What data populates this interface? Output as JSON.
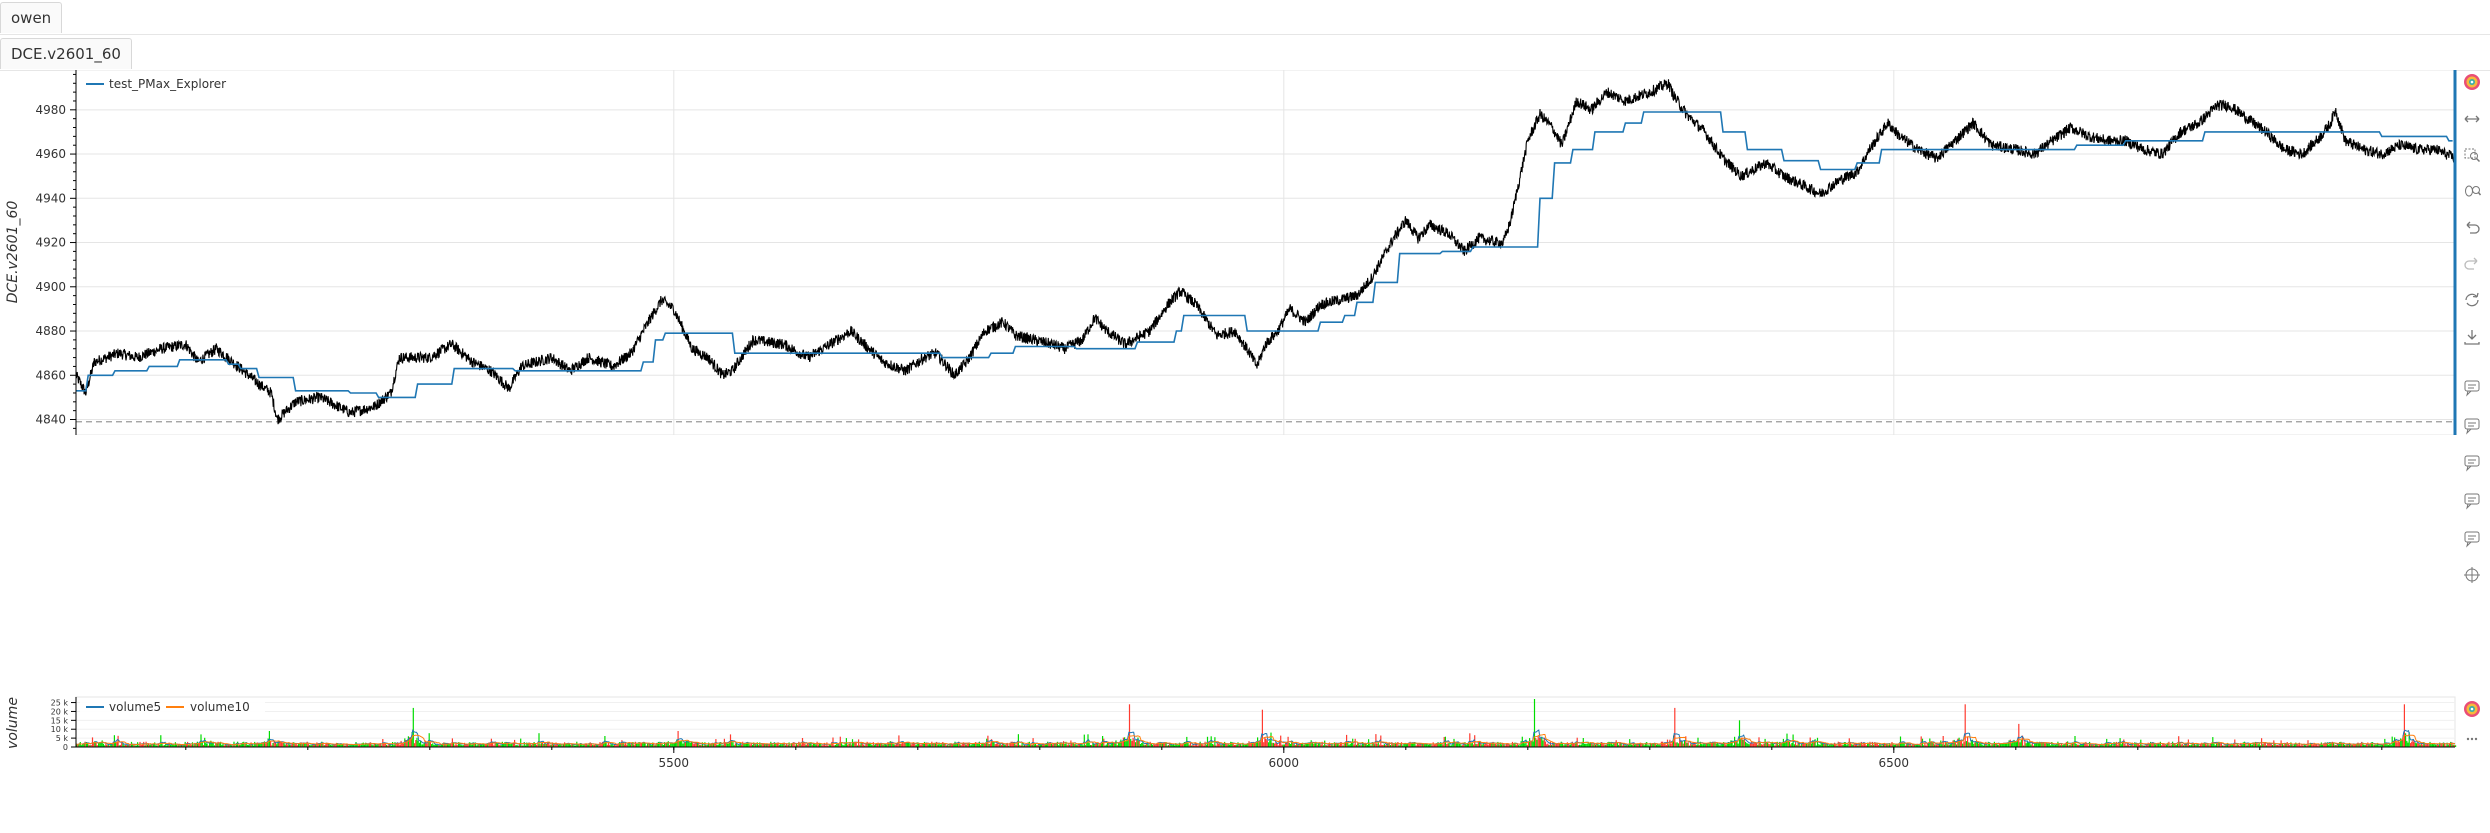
{
  "tabs": {
    "top": "owen",
    "second": "DCE.v2601_60"
  },
  "main_chart": {
    "ylabel": "DCE.v2601_60",
    "legend_entry": "test_PMax_Explorer",
    "y_ticks": [
      4840,
      4860,
      4880,
      4900,
      4920,
      4940,
      4960,
      4980
    ],
    "x_ticks": [
      5500,
      6000,
      6500
    ],
    "x_range": [
      5010,
      6960
    ],
    "y_range": [
      4833,
      4998
    ],
    "dashed_level": 4839
  },
  "volume_chart": {
    "ylabel": "volume",
    "legend": [
      "volume5",
      "volume10"
    ],
    "y_tick_labels": [
      "25 k",
      "20 k",
      "15 k",
      "10 k",
      "5 k",
      "0"
    ]
  },
  "toolbar_icons": [
    "bokeh-logo-icon",
    "pan-icon",
    "box-zoom-icon",
    "wheel-zoom-icon",
    "undo-icon",
    "redo-icon",
    "reset-icon",
    "save-icon",
    "hover-icon",
    "hover-icon",
    "hover-icon",
    "hover-icon",
    "hover-icon",
    "crosshair-icon"
  ],
  "colors": {
    "price": "#000000",
    "pmax": "#1f77b4",
    "volume_up": "#00dd00",
    "volume_down": "#ff3b30",
    "volume5": "#1f77b4",
    "volume10": "#ff7f0e",
    "grid": "#e5e5e5"
  },
  "chart_data": {
    "type": "line",
    "x_range": [
      5010,
      6960
    ],
    "price_anchors": [
      [
        5010,
        4860
      ],
      [
        5018,
        4852
      ],
      [
        5025,
        4866
      ],
      [
        5045,
        4870
      ],
      [
        5060,
        4868
      ],
      [
        5080,
        4872
      ],
      [
        5100,
        4874
      ],
      [
        5110,
        4866
      ],
      [
        5125,
        4872
      ],
      [
        5145,
        4863
      ],
      [
        5160,
        4856
      ],
      [
        5170,
        4852
      ],
      [
        5175,
        4840
      ],
      [
        5190,
        4848
      ],
      [
        5210,
        4850
      ],
      [
        5235,
        4843
      ],
      [
        5255,
        4846
      ],
      [
        5268,
        4852
      ],
      [
        5275,
        4868
      ],
      [
        5300,
        4868
      ],
      [
        5318,
        4874
      ],
      [
        5335,
        4866
      ],
      [
        5350,
        4862
      ],
      [
        5365,
        4854
      ],
      [
        5375,
        4864
      ],
      [
        5400,
        4868
      ],
      [
        5415,
        4862
      ],
      [
        5430,
        4868
      ],
      [
        5450,
        4864
      ],
      [
        5465,
        4870
      ],
      [
        5480,
        4885
      ],
      [
        5490,
        4894
      ],
      [
        5500,
        4890
      ],
      [
        5515,
        4872
      ],
      [
        5528,
        4868
      ],
      [
        5540,
        4860
      ],
      [
        5548,
        4862
      ],
      [
        5565,
        4876
      ],
      [
        5590,
        4874
      ],
      [
        5610,
        4868
      ],
      [
        5628,
        4874
      ],
      [
        5645,
        4880
      ],
      [
        5660,
        4872
      ],
      [
        5672,
        4866
      ],
      [
        5690,
        4862
      ],
      [
        5705,
        4868
      ],
      [
        5715,
        4870
      ],
      [
        5730,
        4860
      ],
      [
        5740,
        4866
      ],
      [
        5755,
        4880
      ],
      [
        5770,
        4884
      ],
      [
        5780,
        4878
      ],
      [
        5795,
        4876
      ],
      [
        5810,
        4874
      ],
      [
        5820,
        4872
      ],
      [
        5835,
        4876
      ],
      [
        5845,
        4886
      ],
      [
        5855,
        4880
      ],
      [
        5870,
        4874
      ],
      [
        5890,
        4880
      ],
      [
        5905,
        4892
      ],
      [
        5915,
        4898
      ],
      [
        5928,
        4892
      ],
      [
        5945,
        4878
      ],
      [
        5960,
        4880
      ],
      [
        5972,
        4870
      ],
      [
        5978,
        4864
      ],
      [
        5985,
        4874
      ],
      [
        5995,
        4880
      ],
      [
        6005,
        4890
      ],
      [
        6018,
        4884
      ],
      [
        6030,
        4892
      ],
      [
        6045,
        4894
      ],
      [
        6060,
        4896
      ],
      [
        6072,
        4904
      ],
      [
        6082,
        4914
      ],
      [
        6090,
        4922
      ],
      [
        6100,
        4930
      ],
      [
        6110,
        4922
      ],
      [
        6120,
        4928
      ],
      [
        6135,
        4924
      ],
      [
        6148,
        4916
      ],
      [
        6160,
        4922
      ],
      [
        6175,
        4920
      ],
      [
        6180,
        4920
      ],
      [
        6186,
        4930
      ],
      [
        6193,
        4948
      ],
      [
        6200,
        4966
      ],
      [
        6210,
        4978
      ],
      [
        6220,
        4972
      ],
      [
        6228,
        4964
      ],
      [
        6240,
        4984
      ],
      [
        6252,
        4980
      ],
      [
        6265,
        4988
      ],
      [
        6280,
        4984
      ],
      [
        6300,
        4988
      ],
      [
        6315,
        4992
      ],
      [
        6320,
        4986
      ],
      [
        6330,
        4978
      ],
      [
        6345,
        4970
      ],
      [
        6360,
        4958
      ],
      [
        6375,
        4950
      ],
      [
        6395,
        4956
      ],
      [
        6410,
        4950
      ],
      [
        6425,
        4946
      ],
      [
        6440,
        4942
      ],
      [
        6455,
        4948
      ],
      [
        6470,
        4952
      ],
      [
        6480,
        4962
      ],
      [
        6495,
        4974
      ],
      [
        6505,
        4968
      ],
      [
        6520,
        4962
      ],
      [
        6535,
        4958
      ],
      [
        6550,
        4966
      ],
      [
        6565,
        4974
      ],
      [
        6580,
        4964
      ],
      [
        6600,
        4962
      ],
      [
        6615,
        4960
      ],
      [
        6630,
        4966
      ],
      [
        6645,
        4972
      ],
      [
        6660,
        4968
      ],
      [
        6675,
        4966
      ],
      [
        6690,
        4966
      ],
      [
        6705,
        4962
      ],
      [
        6720,
        4960
      ],
      [
        6735,
        4970
      ],
      [
        6750,
        4974
      ],
      [
        6765,
        4982
      ],
      [
        6775,
        4982
      ],
      [
        6790,
        4976
      ],
      [
        6805,
        4970
      ],
      [
        6820,
        4962
      ],
      [
        6835,
        4960
      ],
      [
        6850,
        4968
      ],
      [
        6858,
        4974
      ],
      [
        6862,
        4980
      ],
      [
        6870,
        4966
      ],
      [
        6885,
        4962
      ],
      [
        6900,
        4960
      ],
      [
        6915,
        4964
      ],
      [
        6930,
        4962
      ],
      [
        6945,
        4962
      ],
      [
        6960,
        4958
      ]
    ],
    "pmax_steps": [
      [
        5010,
        4853
      ],
      [
        5020,
        4860
      ],
      [
        5042,
        4862
      ],
      [
        5070,
        4864
      ],
      [
        5095,
        4867
      ],
      [
        5135,
        4865
      ],
      [
        5145,
        4863
      ],
      [
        5160,
        4859
      ],
      [
        5190,
        4853
      ],
      [
        5235,
        4852
      ],
      [
        5258,
        4850
      ],
      [
        5290,
        4856
      ],
      [
        5320,
        4863
      ],
      [
        5370,
        4862
      ],
      [
        5410,
        4862
      ],
      [
        5475,
        4866
      ],
      [
        5485,
        4876
      ],
      [
        5493,
        4879
      ],
      [
        5550,
        4870
      ],
      [
        5640,
        4870
      ],
      [
        5720,
        4868
      ],
      [
        5760,
        4870
      ],
      [
        5780,
        4873
      ],
      [
        5830,
        4872
      ],
      [
        5880,
        4875
      ],
      [
        5912,
        4880
      ],
      [
        5918,
        4887
      ],
      [
        5955,
        4887
      ],
      [
        5970,
        4880
      ],
      [
        6010,
        4880
      ],
      [
        6030,
        4884
      ],
      [
        6050,
        4887
      ],
      [
        6060,
        4893
      ],
      [
        6075,
        4902
      ],
      [
        6095,
        4915
      ],
      [
        6130,
        4916
      ],
      [
        6155,
        4918
      ],
      [
        6195,
        4918
      ],
      [
        6210,
        4940
      ],
      [
        6222,
        4956
      ],
      [
        6237,
        4962
      ],
      [
        6255,
        4970
      ],
      [
        6280,
        4974
      ],
      [
        6295,
        4979
      ],
      [
        6348,
        4979
      ],
      [
        6360,
        4970
      ],
      [
        6380,
        4962
      ],
      [
        6410,
        4957
      ],
      [
        6440,
        4953
      ],
      [
        6470,
        4956
      ],
      [
        6490,
        4962
      ],
      [
        6560,
        4962
      ],
      [
        6650,
        4964
      ],
      [
        6690,
        4966
      ],
      [
        6755,
        4970
      ],
      [
        6870,
        4970
      ],
      [
        6900,
        4968
      ],
      [
        6955,
        4966
      ]
    ],
    "volume_spikes": [
      [
        5168,
        9000
      ],
      [
        5286,
        22000
      ],
      [
        5873,
        24000
      ],
      [
        5982,
        21000
      ],
      [
        6205,
        27000
      ],
      [
        6320,
        22000
      ],
      [
        6558,
        24000
      ],
      [
        6602,
        13000
      ],
      [
        6918,
        24000
      ],
      [
        5503,
        9000
      ],
      [
        6373,
        15000
      ]
    ]
  }
}
